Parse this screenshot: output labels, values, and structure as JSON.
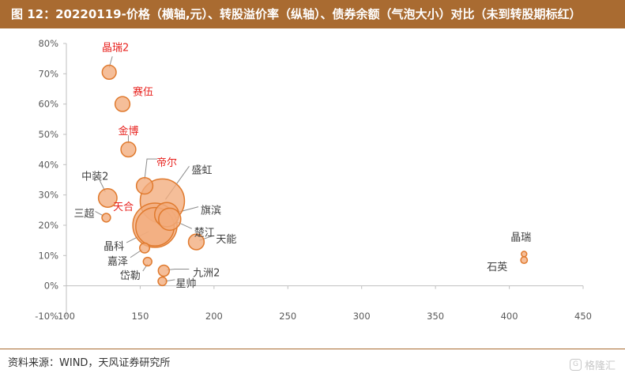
{
  "title": "图 12：20220119-价格（横轴,元）、转股溢价率（纵轴）、债券余额（气泡大小）对比（未到转股期标红）",
  "source": "资料来源：WIND，天风证券研究所",
  "watermark": "格隆汇",
  "colors": {
    "bubble_fill": "#f2ac7c",
    "bubble_stroke": "#e07a2e",
    "highlight_text": "#e8231f",
    "normal_text": "#404040",
    "title_bg": "#a96b31"
  },
  "chart_data": {
    "type": "scatter",
    "title": "",
    "xlabel": "",
    "ylabel": "",
    "xlim": [
      100,
      450
    ],
    "ylim": [
      -10,
      80
    ],
    "x_ticks": [
      100,
      150,
      200,
      250,
      300,
      350,
      400,
      450
    ],
    "y_ticks": [
      -10,
      0,
      10,
      20,
      30,
      40,
      50,
      60,
      70,
      80
    ],
    "y_tick_format": "percent",
    "bubble_size": "债券余额",
    "points": [
      {
        "name": "晶瑞2",
        "x": 129,
        "y": 70.5,
        "size": 4,
        "highlight": true
      },
      {
        "name": "赛伍",
        "x": 138,
        "y": 60,
        "size": 4.5,
        "highlight": true
      },
      {
        "name": "金博",
        "x": 142,
        "y": 45,
        "size": 4.5,
        "highlight": true
      },
      {
        "name": "中装2",
        "x": 128,
        "y": 29,
        "size": 7,
        "highlight": false
      },
      {
        "name": "帝尔",
        "x": 153,
        "y": 33,
        "size": 5.5,
        "highlight": true
      },
      {
        "name": "盛虹",
        "x": 165,
        "y": 28,
        "size": 40,
        "highlight": false
      },
      {
        "name": "天合",
        "x": 160,
        "y": 20,
        "size": 40,
        "highlight": true
      },
      {
        "name": "旗滨",
        "x": 168,
        "y": 23.5,
        "size": 12,
        "highlight": false
      },
      {
        "name": "楚江",
        "x": 170,
        "y": 22,
        "size": 10,
        "highlight": false
      },
      {
        "name": "三超",
        "x": 127,
        "y": 22.5,
        "size": 1.5,
        "highlight": false
      },
      {
        "name": "晶科",
        "x": 160,
        "y": 19.5,
        "size": 30,
        "highlight": false
      },
      {
        "name": "天能",
        "x": 188,
        "y": 14.5,
        "size": 5,
        "highlight": false
      },
      {
        "name": "嘉泽",
        "x": 153,
        "y": 12.5,
        "size": 2,
        "highlight": false
      },
      {
        "name": "岱勒",
        "x": 155,
        "y": 8,
        "size": 1.5,
        "highlight": false
      },
      {
        "name": "九洲2",
        "x": 166,
        "y": 5,
        "size": 2.5,
        "highlight": false
      },
      {
        "name": "星帅",
        "x": 165,
        "y": 1.5,
        "size": 1.5,
        "highlight": false
      },
      {
        "name": "晶瑞",
        "x": 410,
        "y": 10.5,
        "size": 0.6,
        "highlight": false
      },
      {
        "name": "石英",
        "x": 410,
        "y": 8.5,
        "size": 0.9,
        "highlight": false
      }
    ]
  }
}
